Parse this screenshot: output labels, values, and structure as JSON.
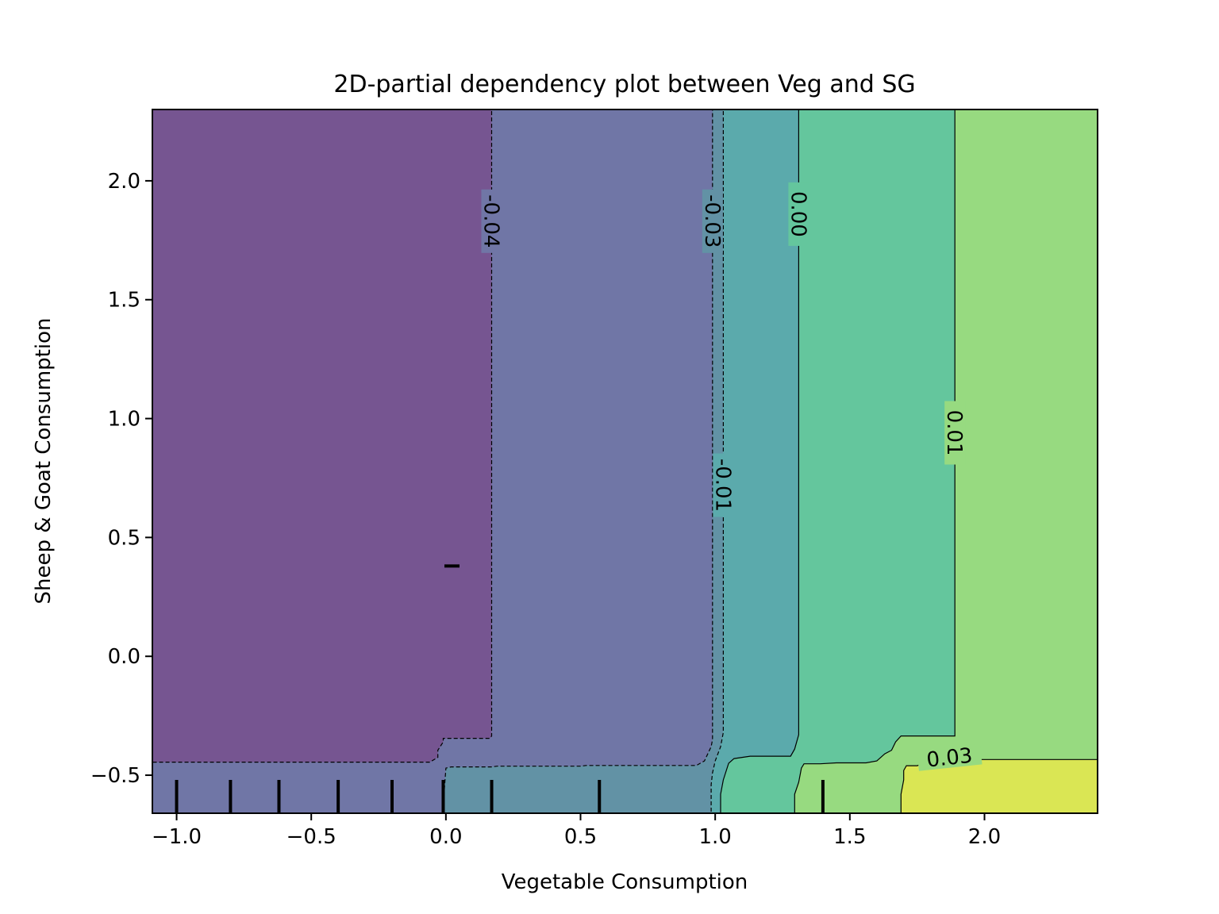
{
  "chart_data": {
    "type": "heatmap",
    "subtype": "filled-contour",
    "title": "2D-partial dependency plot between Veg and SG",
    "xlabel": "Vegetable Consumption",
    "ylabel": "Sheep & Goat Consumption",
    "xlim": [
      -1.09,
      2.42
    ],
    "ylim": [
      -0.66,
      2.3
    ],
    "x_ticks": [
      -1.0,
      -0.5,
      0.0,
      0.5,
      1.0,
      1.5,
      2.0
    ],
    "x_tick_labels": [
      "−1.0",
      "−0.5",
      "0.0",
      "0.5",
      "1.0",
      "1.5",
      "2.0"
    ],
    "y_ticks": [
      -0.5,
      0.0,
      0.5,
      1.0,
      1.5,
      2.0
    ],
    "y_tick_labels": [
      "−0.5",
      "0.0",
      "0.5",
      "1.0",
      "1.5",
      "2.0"
    ],
    "grid": false,
    "colormap": "viridis",
    "contour_levels": [
      {
        "value": -0.04,
        "label": "-0.04",
        "style": "dashed"
      },
      {
        "value": -0.03,
        "label": "-0.03",
        "style": "dashed"
      },
      {
        "value": -0.01,
        "label": "-0.01",
        "style": "dashed"
      },
      {
        "value": 0.0,
        "label": "0.00",
        "style": "solid"
      },
      {
        "value": 0.01,
        "label": "0.01",
        "style": "solid"
      },
      {
        "value": 0.03,
        "label": "0.03",
        "style": "solid"
      }
    ],
    "regions": [
      {
        "range": "< -0.04",
        "color": "#765591"
      },
      {
        "range": "-0.04 to -0.03",
        "color": "#7076a6"
      },
      {
        "range": "-0.03 to -0.01",
        "color": "#6292a5"
      },
      {
        "range": "-0.01 to 0.00",
        "color": "#5baaac"
      },
      {
        "range": "0.00 to 0.01",
        "color": "#64c69d"
      },
      {
        "range": "0.01 to 0.03",
        "color": "#97da80"
      },
      {
        "range": "> 0.03",
        "color": "#dae654"
      }
    ],
    "x_deciles": [
      -1.0,
      -0.8,
      -0.62,
      -0.4,
      -0.2,
      -0.01,
      0.17,
      0.57,
      1.4
    ],
    "y_deciles": [
      0.38
    ]
  }
}
